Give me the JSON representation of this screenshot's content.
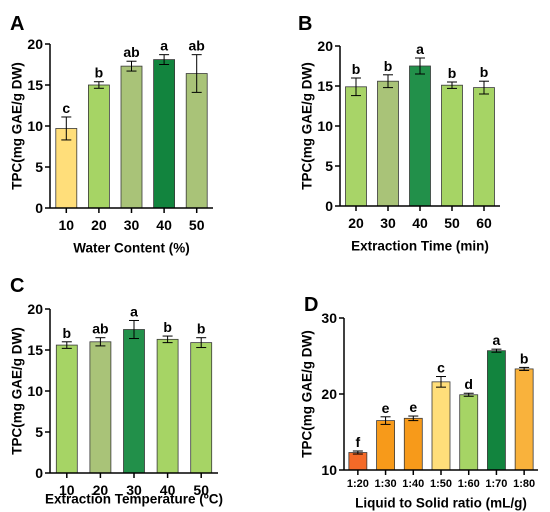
{
  "chart_data": [
    {
      "panel_label": "A",
      "type": "bar",
      "categories": [
        "10",
        "20",
        "30",
        "40",
        "50"
      ],
      "values": [
        9.7,
        15.0,
        17.3,
        18.1,
        16.4
      ],
      "errors": [
        1.4,
        0.4,
        0.6,
        0.6,
        2.3
      ],
      "letters": [
        "c",
        "b",
        "ab",
        "a",
        "ab"
      ],
      "colors": [
        "#FFDE7A",
        "#A6D465",
        "#A9C378",
        "#12843E",
        "#A9C378"
      ],
      "xlabel": "Water Content (%)",
      "ylabel": "TPC(mg GAE/g DW)",
      "ylim": [
        0,
        20
      ],
      "yticks": [
        "0",
        "5",
        "10",
        "15",
        "20"
      ],
      "grid": false
    },
    {
      "panel_label": "B",
      "type": "bar",
      "categories": [
        "20",
        "30",
        "40",
        "50",
        "60"
      ],
      "values": [
        14.9,
        15.6,
        17.5,
        15.1,
        14.8
      ],
      "errors": [
        1.1,
        0.8,
        1.0,
        0.4,
        0.8
      ],
      "letters": [
        "b",
        "b",
        "a",
        "b",
        "b"
      ],
      "colors": [
        "#A8D468",
        "#A9C378",
        "#22904A",
        "#A6D465",
        "#A6D465"
      ],
      "xlabel": "Extraction Time (min)",
      "ylabel": "TPC(mg GAE/g DW)",
      "ylim": [
        0,
        20
      ],
      "yticks": [
        "0",
        "5",
        "10",
        "15",
        "20"
      ],
      "grid": false
    },
    {
      "panel_label": "C",
      "type": "bar",
      "categories": [
        "10",
        "20",
        "30",
        "40",
        "50"
      ],
      "values": [
        15.6,
        16.0,
        17.5,
        16.3,
        15.9
      ],
      "errors": [
        0.4,
        0.5,
        1.1,
        0.4,
        0.6
      ],
      "letters": [
        "b",
        "ab",
        "a",
        "b",
        "b"
      ],
      "colors": [
        "#A6D465",
        "#A9C378",
        "#22904A",
        "#A6D465",
        "#A6D465"
      ],
      "xlabel": "Extraction Temperature (ºC)",
      "ylabel": "TPC(mg GAE/g DW)",
      "ylim": [
        0,
        20
      ],
      "yticks": [
        "0",
        "5",
        "10",
        "15",
        "20"
      ],
      "grid": false
    },
    {
      "panel_label": "D",
      "type": "bar",
      "categories": [
        "1:20",
        "1:30",
        "1:40",
        "1:50",
        "1:60",
        "1:70",
        "1:80"
      ],
      "values": [
        12.3,
        16.5,
        16.8,
        21.6,
        19.9,
        25.7,
        23.3
      ],
      "errors": [
        0.2,
        0.5,
        0.3,
        0.7,
        0.2,
        0.2,
        0.2
      ],
      "letters": [
        "f",
        "e",
        "e",
        "c",
        "d",
        "a",
        "b"
      ],
      "colors": [
        "#F46A28",
        "#F79A1A",
        "#F79A1A",
        "#FFDE7A",
        "#A6D465",
        "#12843E",
        "#F9B23C"
      ],
      "xlabel": "Liquid to Solid ratio (mL/g)",
      "ylabel": "TPC(mg GAE/g DW)",
      "ylim": [
        10,
        30
      ],
      "yticks": [
        "10",
        "20",
        "30"
      ],
      "grid": false
    }
  ]
}
